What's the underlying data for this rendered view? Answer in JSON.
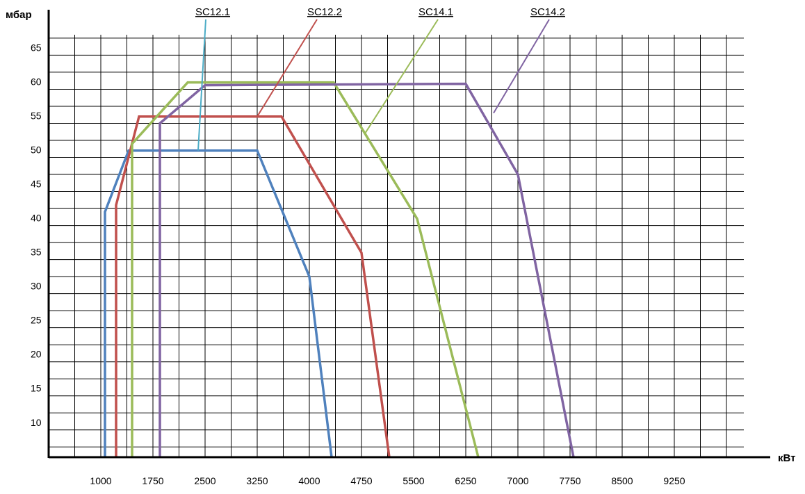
{
  "chart_data": {
    "type": "line",
    "xlabel": "кВт",
    "ylabel": "мбар",
    "xlim": [
      250,
      10250
    ],
    "ylim": [
      6,
      68
    ],
    "x_ticks": [
      1000,
      1750,
      2500,
      3250,
      4000,
      4750,
      5500,
      6250,
      7000,
      7750,
      8500,
      9250
    ],
    "y_ticks": [
      10,
      15,
      20,
      25,
      30,
      35,
      40,
      45,
      50,
      55,
      60,
      65
    ],
    "x_tick_labels": [
      "1000",
      "1750",
      "2500",
      "3250",
      "4000",
      "4750",
      "5500",
      "6250",
      "7000",
      "7750",
      "8500",
      "9250"
    ],
    "y_tick_labels": [
      "10",
      "15",
      "20",
      "25",
      "30",
      "35",
      "40",
      "45",
      "50",
      "55",
      "60",
      "65"
    ],
    "grid": true,
    "series": [
      {
        "name": "SC12.1",
        "color": "#4f81bd",
        "points": [
          [
            1060,
            6
          ],
          [
            1060,
            42
          ],
          [
            1400,
            51
          ],
          [
            3250,
            51
          ],
          [
            4000,
            32.5
          ],
          [
            4320,
            6
          ]
        ],
        "label_anchor": [
          2400,
          51
        ],
        "label_color": "#4bacc6"
      },
      {
        "name": "SC12.2",
        "color": "#c0504d",
        "points": [
          [
            1220,
            6
          ],
          [
            1220,
            43
          ],
          [
            1550,
            56
          ],
          [
            3600,
            56
          ],
          [
            4750,
            36
          ],
          [
            5150,
            6
          ]
        ],
        "label_anchor": [
          3250,
          56
        ],
        "label_color": "#c0504d"
      },
      {
        "name": "SC14.1",
        "color": "#9bbb59",
        "points": [
          [
            1450,
            6
          ],
          [
            1450,
            52
          ],
          [
            2250,
            61
          ],
          [
            4350,
            61
          ],
          [
            5550,
            41
          ],
          [
            6430,
            6
          ]
        ],
        "label_anchor": [
          4800,
          53.5
        ],
        "label_color": "#9bbb59"
      },
      {
        "name": "SC14.2",
        "color": "#8064a2",
        "points": [
          [
            1850,
            6
          ],
          [
            1850,
            55
          ],
          [
            2500,
            60.6
          ],
          [
            6250,
            60.8
          ],
          [
            7000,
            47.5
          ],
          [
            7800,
            6
          ]
        ],
        "label_anchor": [
          6650,
          56.5
        ],
        "label_color": "#8064a2"
      }
    ]
  }
}
